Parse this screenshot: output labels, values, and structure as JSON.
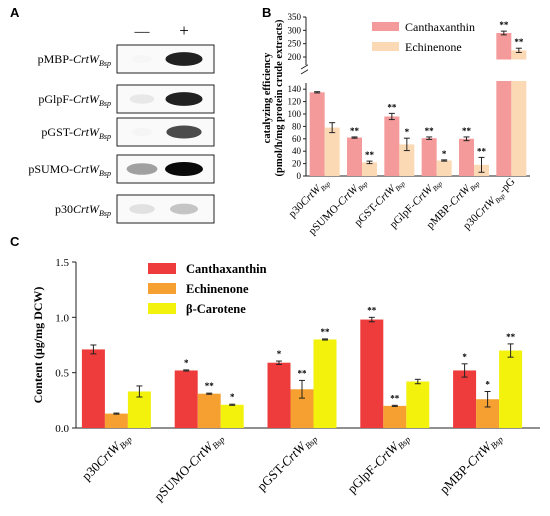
{
  "panel_labels": {
    "a": "A",
    "b": "B",
    "c": "C"
  },
  "blot": {
    "columns": [
      "—",
      "+"
    ],
    "rows": [
      {
        "prefix": "pMBP-",
        "gene": "CrtW",
        "sub": "Bsp",
        "intensity": [
          0.02,
          0.95
        ]
      },
      {
        "prefix": "pGlpF-",
        "gene": "CrtW",
        "sub": "Bsp",
        "intensity": [
          0.25,
          0.95
        ]
      },
      {
        "prefix": "pGST-",
        "gene": "CrtW",
        "sub": "Bsp",
        "intensity": [
          0.05,
          0.85
        ]
      },
      {
        "prefix": "pSUMO-",
        "gene": "CrtW",
        "sub": "Bsp",
        "intensity": [
          0.6,
          1.0
        ]
      },
      {
        "prefix": "p30",
        "gene": "CrtW",
        "sub": "Bsp",
        "intensity": [
          0.3,
          0.45
        ]
      }
    ]
  },
  "colors": {
    "canth_b": "#f59a9a",
    "echin_b": "#fbd9b5",
    "canth_c": "#ee3b3b",
    "echin_c": "#f5a030",
    "bcar_c": "#f2f20c"
  },
  "chart_data": [
    {
      "type": "bar",
      "ylabel_lines": [
        "catalyzing efficiency",
        "(pmol/h/mg protein crude extracts)"
      ],
      "y_broken_axis": true,
      "y_lower_range": [
        0,
        150
      ],
      "y_upper_range": [
        200,
        350
      ],
      "y_ticks_lower": [
        "0",
        "20",
        "40",
        "60",
        "80",
        "100",
        "120",
        "140"
      ],
      "y_ticks_upper": [
        "200",
        "250",
        "300",
        "350"
      ],
      "categories": [
        {
          "prefix": "p30",
          "gene": "CrtW",
          "sub": "Bsp",
          "suffix": ""
        },
        {
          "prefix": "pSUMO-",
          "gene": "CrtW",
          "sub": "Bsp",
          "suffix": ""
        },
        {
          "prefix": "pGST-",
          "gene": "CrtW",
          "sub": "Bsp",
          "suffix": ""
        },
        {
          "prefix": "pGlpF-",
          "gene": "CrtW",
          "sub": "Bsp",
          "suffix": ""
        },
        {
          "prefix": "pMBP-",
          "gene": "CrtW",
          "sub": "Bsp",
          "suffix": ""
        },
        {
          "prefix": "p30",
          "gene": "CrtW",
          "sub": "Bsp",
          "suffix": "-pG"
        }
      ],
      "series": [
        {
          "name": "Canthaxanthin",
          "values": [
            135,
            62,
            96,
            61,
            60,
            290
          ],
          "errors": [
            1,
            1,
            5,
            2,
            3,
            7
          ],
          "sig": [
            "",
            "**",
            "**",
            "**",
            "**",
            "**"
          ]
        },
        {
          "name": "Echinenone",
          "values": [
            78,
            22,
            51,
            25,
            18,
            225
          ],
          "errors": [
            8,
            2,
            10,
            1,
            12,
            8
          ],
          "sig": [
            "",
            "**",
            "*",
            "*",
            "**",
            "**"
          ]
        }
      ],
      "legend_position": "top-right"
    },
    {
      "type": "bar",
      "ylabel": "Content (μg/mg DCW)",
      "ylim": [
        0,
        1.5
      ],
      "y_ticks": [
        "0.0",
        "0.5",
        "1.0",
        "1.5"
      ],
      "categories": [
        {
          "prefix": "p30",
          "gene": "CrtW",
          "sub": "Bsp"
        },
        {
          "prefix": "pSUMO-",
          "gene": "CrtW",
          "sub": "Bsp"
        },
        {
          "prefix": "pGST-",
          "gene": "CrtW",
          "sub": "Bsp"
        },
        {
          "prefix": "pGlpF-",
          "gene": "CrtW",
          "sub": "Bsp"
        },
        {
          "prefix": "pMBP-",
          "gene": "CrtW",
          "sub": "Bsp"
        }
      ],
      "series": [
        {
          "name": "Canthaxanthin",
          "values": [
            0.71,
            0.52,
            0.59,
            0.98,
            0.52
          ],
          "errors": [
            0.04,
            0.005,
            0.015,
            0.02,
            0.06
          ],
          "sig": [
            "",
            "*",
            "*",
            "**",
            "*"
          ]
        },
        {
          "name": "Echinenone",
          "values": [
            0.13,
            0.31,
            0.35,
            0.2,
            0.26
          ],
          "errors": [
            0.005,
            0.005,
            0.08,
            0.005,
            0.07
          ],
          "sig": [
            "",
            "**",
            "**",
            "**",
            "*"
          ]
        },
        {
          "name": "β-Carotene",
          "values": [
            0.33,
            0.21,
            0.8,
            0.42,
            0.7
          ],
          "errors": [
            0.05,
            0.005,
            0.005,
            0.02,
            0.06
          ],
          "sig": [
            "",
            "*",
            "**",
            "",
            "**"
          ]
        }
      ],
      "legend_position": "top-left"
    }
  ]
}
